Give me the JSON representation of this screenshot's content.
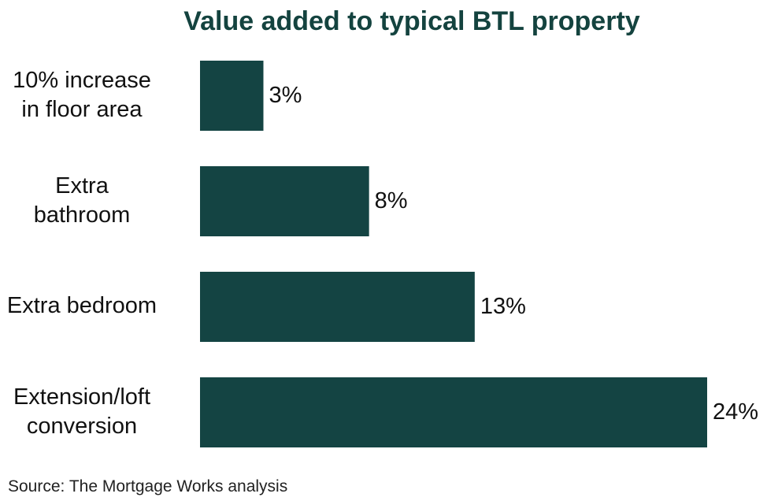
{
  "chart_data": {
    "type": "bar",
    "orientation": "horizontal",
    "title": "Value added to typical BTL property",
    "categories": [
      [
        "10% increase",
        "in floor area"
      ],
      [
        "Extra",
        "bathroom"
      ],
      [
        "Extra bedroom"
      ],
      [
        "Extension/loft",
        "conversion"
      ]
    ],
    "values": [
      3,
      8,
      13,
      24
    ],
    "value_labels": [
      "3%",
      "8%",
      "13%",
      "24%"
    ],
    "unit": "%",
    "xlim": [
      0,
      24
    ],
    "grid": false,
    "legend": "none",
    "colors": {
      "bar": "#144443",
      "title": "#14433f",
      "text": "#111111"
    }
  },
  "source": "Source: The Mortgage Works analysis"
}
